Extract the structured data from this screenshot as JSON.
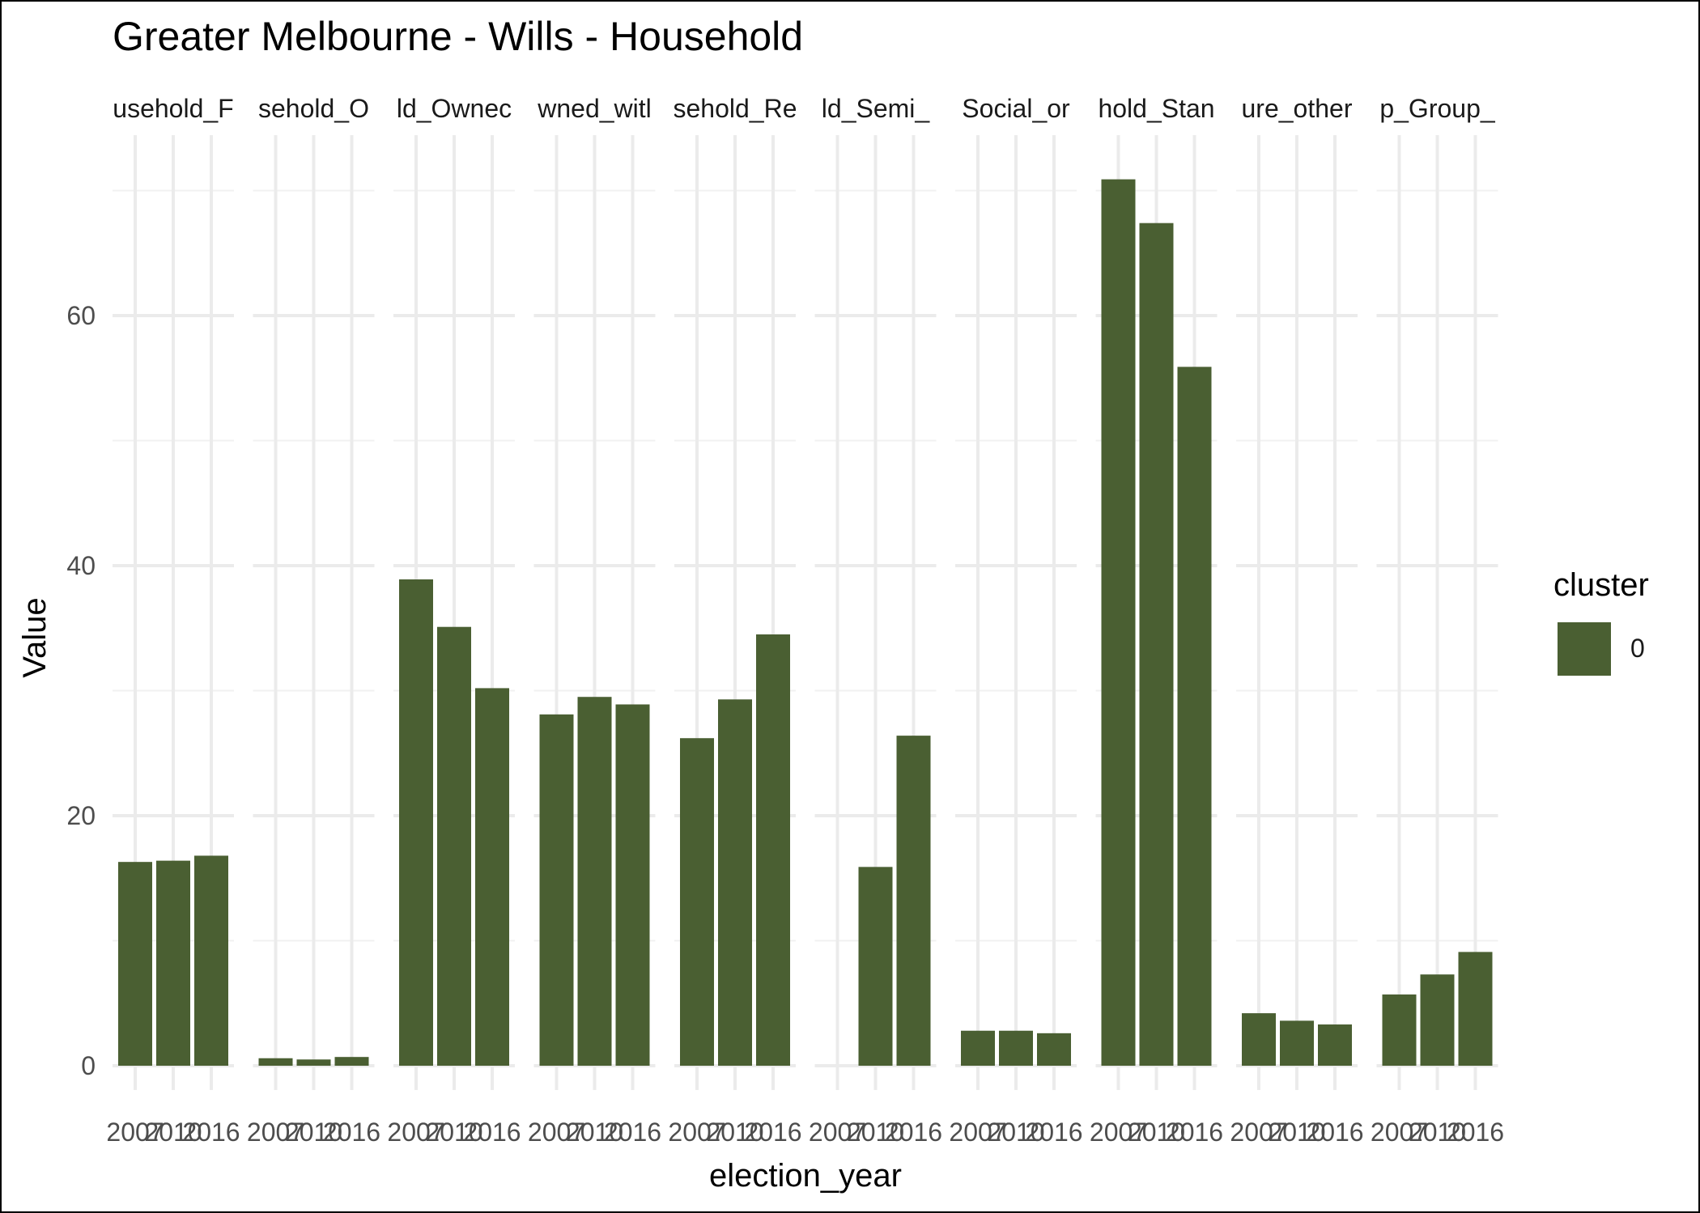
{
  "chart_data": {
    "type": "bar",
    "title": "Greater Melbourne - Wills - Household",
    "xlabel": "election_year",
    "ylabel": "Value",
    "categories": [
      "2007",
      "2010",
      "2016"
    ],
    "ylim": [
      0,
      74
    ],
    "yticks": [
      0,
      20,
      40,
      60
    ],
    "grid": true,
    "legend": {
      "title": "cluster",
      "position": "right",
      "entries": [
        {
          "label": "0",
          "color": "#4a5f32"
        }
      ]
    },
    "bar_color": "#4a5f32",
    "panels": [
      {
        "label": "usehold_F",
        "values": [
          16.3,
          16.4,
          16.8
        ]
      },
      {
        "label": "sehold_O",
        "values": [
          0.6,
          0.5,
          0.7
        ]
      },
      {
        "label": "ld_Ownec",
        "values": [
          38.9,
          35.1,
          30.2
        ]
      },
      {
        "label": "wned_witl",
        "values": [
          28.1,
          29.5,
          28.9
        ]
      },
      {
        "label": "sehold_Re",
        "values": [
          26.2,
          29.3,
          34.5
        ]
      },
      {
        "label": "ld_Semi_",
        "values": [
          null,
          15.9,
          26.4
        ]
      },
      {
        "label": "Social_or",
        "values": [
          2.8,
          2.8,
          2.6
        ]
      },
      {
        "label": "hold_Stan",
        "values": [
          70.9,
          67.4,
          55.9
        ]
      },
      {
        "label": "ure_other",
        "values": [
          4.2,
          3.6,
          3.3
        ]
      },
      {
        "label": "p_Group_",
        "values": [
          5.7,
          7.3,
          9.1
        ]
      }
    ]
  }
}
